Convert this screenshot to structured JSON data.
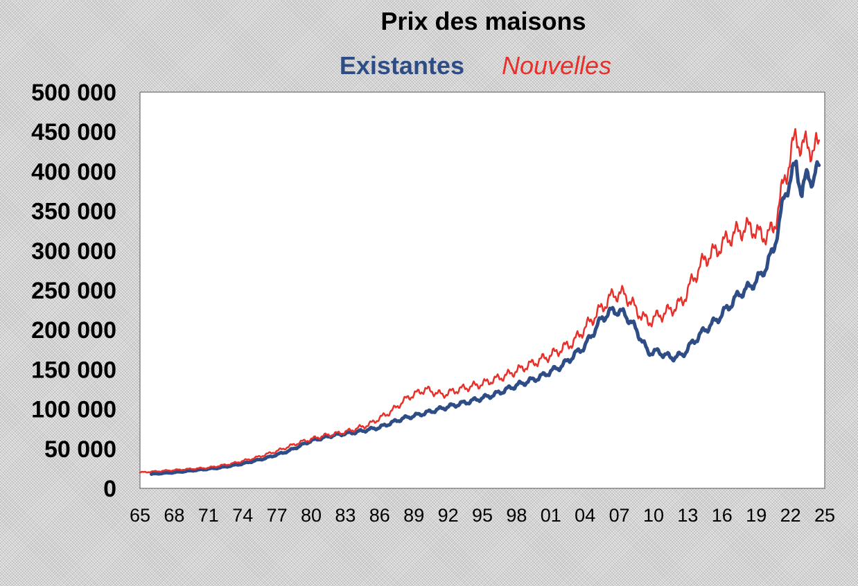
{
  "chart_data": {
    "type": "line",
    "title": "Prix des maisons",
    "xlabel": "",
    "ylabel": "",
    "xlim": [
      1965,
      2025
    ],
    "ylim": [
      0,
      500000
    ],
    "grid": false,
    "legend_position": "top-center",
    "yticks": [
      0,
      50000,
      100000,
      150000,
      200000,
      250000,
      300000,
      350000,
      400000,
      450000,
      500000
    ],
    "ytick_labels": [
      "0",
      "50 000",
      "100 000",
      "150 000",
      "200 000",
      "250 000",
      "300 000",
      "350 000",
      "400 000",
      "450 000",
      "500 000"
    ],
    "xticks": [
      1965,
      1968,
      1971,
      1974,
      1977,
      1980,
      1983,
      1986,
      1989,
      1992,
      1995,
      1998,
      2001,
      2004,
      2007,
      2010,
      2013,
      2016,
      2019,
      2022,
      2025
    ],
    "xtick_labels": [
      "65",
      "68",
      "71",
      "74",
      "77",
      "80",
      "83",
      "86",
      "89",
      "92",
      "95",
      "98",
      "01",
      "04",
      "07",
      "10",
      "13",
      "16",
      "19",
      "22",
      "25"
    ],
    "series": [
      {
        "name": "Existantes",
        "color": "#2e4d86",
        "x": [
          1966.0,
          1968.0,
          1970.0,
          1972.0,
          1974.0,
          1976.0,
          1978.0,
          1980.0,
          1982.0,
          1984.0,
          1986.0,
          1988.0,
          1990.0,
          1992.0,
          1994.0,
          1996.0,
          1998.0,
          2000.0,
          2002.0,
          2004.0,
          2005.5,
          2006.5,
          2007.5,
          2008.5,
          2009.5,
          2010.5,
          2011.5,
          2012.5,
          2013.5,
          2014.5,
          2015.5,
          2016.5,
          2017.5,
          2018.5,
          2019.5,
          2020.5,
          2021.0,
          2021.5,
          2022.5,
          2023.0,
          2023.5,
          2024.0,
          2024.5
        ],
        "y": [
          18000,
          20000,
          23000,
          26000,
          31000,
          38000,
          47000,
          60000,
          67000,
          71000,
          77000,
          88000,
          95000,
          103000,
          110000,
          118000,
          130000,
          140000,
          155000,
          180000,
          215000,
          225000,
          220000,
          200000,
          172000,
          172000,
          165000,
          168000,
          185000,
          200000,
          212000,
          228000,
          245000,
          255000,
          270000,
          300000,
          335000,
          370000,
          410000,
          370000,
          400000,
          385000,
          410000
        ]
      },
      {
        "name": "Nouvelles",
        "color": "#e8302a",
        "x": [
          1965.0,
          1967.0,
          1969.0,
          1971.0,
          1973.0,
          1975.0,
          1977.0,
          1979.0,
          1981.0,
          1983.0,
          1985.0,
          1987.0,
          1988.5,
          1990.0,
          1991.5,
          1993.0,
          1995.0,
          1997.0,
          1999.0,
          2001.0,
          2003.0,
          2005.0,
          2006.5,
          2007.5,
          2008.5,
          2009.5,
          2010.5,
          2011.5,
          2012.5,
          2013.5,
          2014.5,
          2015.5,
          2016.5,
          2017.5,
          2018.5,
          2019.5,
          2020.5,
          2021.0,
          2021.5,
          2022.0,
          2022.5,
          2023.0,
          2023.5,
          2024.0,
          2024.5
        ],
        "y": [
          20000,
          22000,
          24000,
          26000,
          31000,
          38000,
          47000,
          58000,
          66000,
          71000,
          80000,
          97000,
          115000,
          125000,
          118000,
          125000,
          132000,
          142000,
          155000,
          168000,
          185000,
          220000,
          245000,
          245000,
          225000,
          210000,
          218000,
          225000,
          235000,
          265000,
          290000,
          300000,
          315000,
          325000,
          330000,
          318000,
          325000,
          360000,
          390000,
          420000,
          445000,
          430000,
          435000,
          425000,
          435000
        ]
      }
    ]
  }
}
